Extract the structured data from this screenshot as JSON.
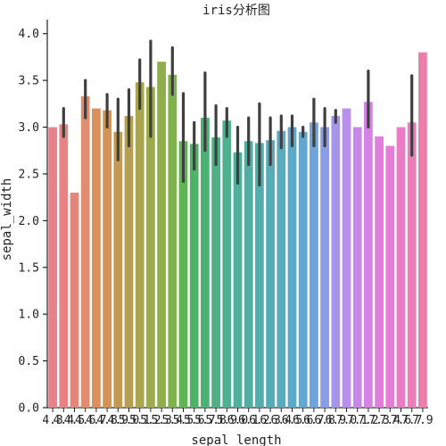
{
  "chart_data": {
    "type": "bar",
    "title": "iris分析图",
    "xlabel": "sepal_length",
    "ylabel": "sepal_width",
    "ylim": [
      0,
      4.15
    ],
    "yticks": [
      "0.0",
      "0.5",
      "1.0",
      "1.5",
      "2.0",
      "2.5",
      "3.0",
      "3.5",
      "4.0"
    ],
    "grid": false,
    "categories": [
      "4.3",
      "4.4",
      "4.5",
      "4.6",
      "4.7",
      "4.8",
      "4.9",
      "5.0",
      "5.1",
      "5.2",
      "5.3",
      "5.4",
      "5.5",
      "5.6",
      "5.7",
      "5.8",
      "5.9",
      "6.0",
      "6.1",
      "6.2",
      "6.3",
      "6.4",
      "6.5",
      "6.6",
      "6.7",
      "6.8",
      "6.9",
      "7.0",
      "7.1",
      "7.2",
      "7.3",
      "7.4",
      "7.6",
      "7.7",
      "7.9"
    ],
    "values": [
      3.0,
      3.03,
      2.3,
      3.33,
      3.2,
      3.18,
      2.95,
      3.12,
      3.48,
      3.43,
      3.7,
      3.56,
      2.85,
      2.82,
      3.1,
      2.89,
      3.07,
      2.73,
      2.85,
      2.83,
      2.86,
      2.96,
      3.0,
      2.95,
      3.05,
      3.0,
      3.12,
      3.2,
      3.0,
      3.27,
      2.9,
      2.8,
      3.0,
      3.05,
      3.8
    ],
    "errors": [
      null,
      [
        2.9,
        3.2
      ],
      null,
      [
        3.1,
        3.5
      ],
      null,
      [
        3.0,
        3.35
      ],
      [
        2.65,
        3.3
      ],
      [
        2.8,
        3.4
      ],
      [
        3.2,
        3.72
      ],
      [
        2.9,
        3.92
      ],
      null,
      [
        3.35,
        3.85
      ],
      [
        2.42,
        3.36
      ],
      [
        2.55,
        3.05
      ],
      [
        2.75,
        3.58
      ],
      [
        2.6,
        3.23
      ],
      [
        2.9,
        3.2
      ],
      [
        2.4,
        3.0
      ],
      [
        2.6,
        3.1
      ],
      [
        2.38,
        3.25
      ],
      [
        2.6,
        3.1
      ],
      [
        2.78,
        3.12
      ],
      [
        2.8,
        3.12
      ],
      [
        2.9,
        3.0
      ],
      [
        2.8,
        3.3
      ],
      [
        2.8,
        3.2
      ],
      [
        3.05,
        3.18
      ],
      null,
      null,
      [
        3.0,
        3.6
      ],
      null,
      null,
      null,
      [
        2.7,
        3.55
      ],
      null
    ],
    "colors": [
      "#e8828a",
      "#e78483",
      "#e6867a",
      "#e48b6d",
      "#d9905a",
      "#d09555",
      "#c49a52",
      "#b79f51",
      "#aaa54f",
      "#9eaa4e",
      "#8fad4c",
      "#7fb24b",
      "#5fb552",
      "#4eb267",
      "#4db176",
      "#4eb183",
      "#4eb08e",
      "#4faf98",
      "#50aea2",
      "#52adab",
      "#54adb4",
      "#57acbd",
      "#5aaac7",
      "#60a7d2",
      "#72a2dc",
      "#8a9ce5",
      "#a596e9",
      "#b88fea",
      "#c789e8",
      "#d483e4",
      "#df7fdc",
      "#e67cd3",
      "#ea7cc6",
      "#ec7db9",
      "#ec7faa"
    ]
  }
}
